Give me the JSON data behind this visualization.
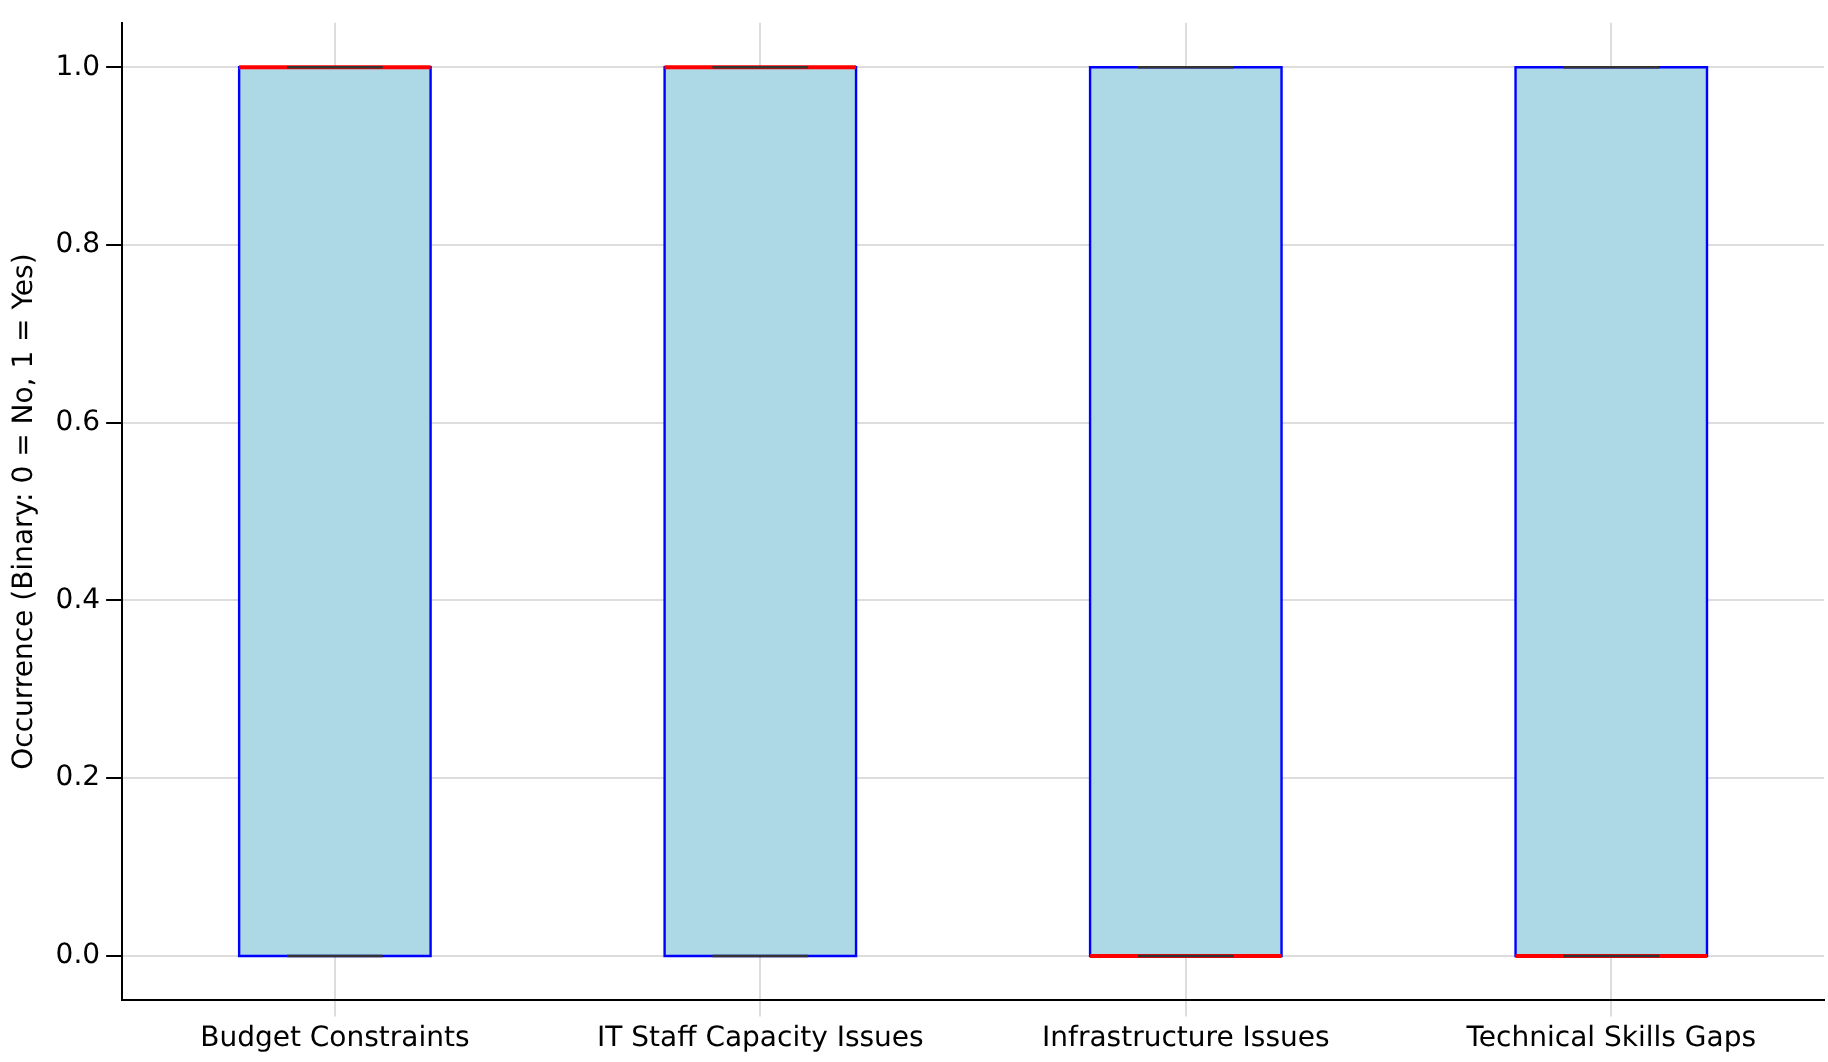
{
  "chart_data": {
    "type": "box",
    "ylabel": "Occurrence (Binary: 0 = No, 1 = Yes)",
    "categories": [
      "Budget Constraints",
      "IT Staff Capacity Issues",
      "Infrastructure Issues",
      "Technical Skills Gaps"
    ],
    "series": [
      {
        "color": "#add8e6",
        "boxes": [
          {
            "low": 0,
            "q1": 0,
            "median": 1,
            "q3": 1,
            "high": 1
          },
          {
            "low": 0,
            "q1": 0,
            "median": 1,
            "q3": 1,
            "high": 1
          },
          {
            "low": 0,
            "q1": 0,
            "median": 0,
            "q3": 1,
            "high": 1
          },
          {
            "low": 0,
            "q1": 0,
            "median": 0,
            "q3": 1,
            "high": 1
          }
        ]
      }
    ],
    "ylim": [
      -0.05,
      1.05
    ],
    "yticks": [
      {
        "value": 0,
        "label": "0.0"
      },
      {
        "value": 0.2,
        "label": "0.2"
      },
      {
        "value": 0.4,
        "label": "0.4"
      },
      {
        "value": 0.6,
        "label": "0.6"
      },
      {
        "value": 0.8,
        "label": "0.8"
      },
      {
        "value": 1,
        "label": "1.0"
      }
    ],
    "grid": true,
    "legend": false
  }
}
